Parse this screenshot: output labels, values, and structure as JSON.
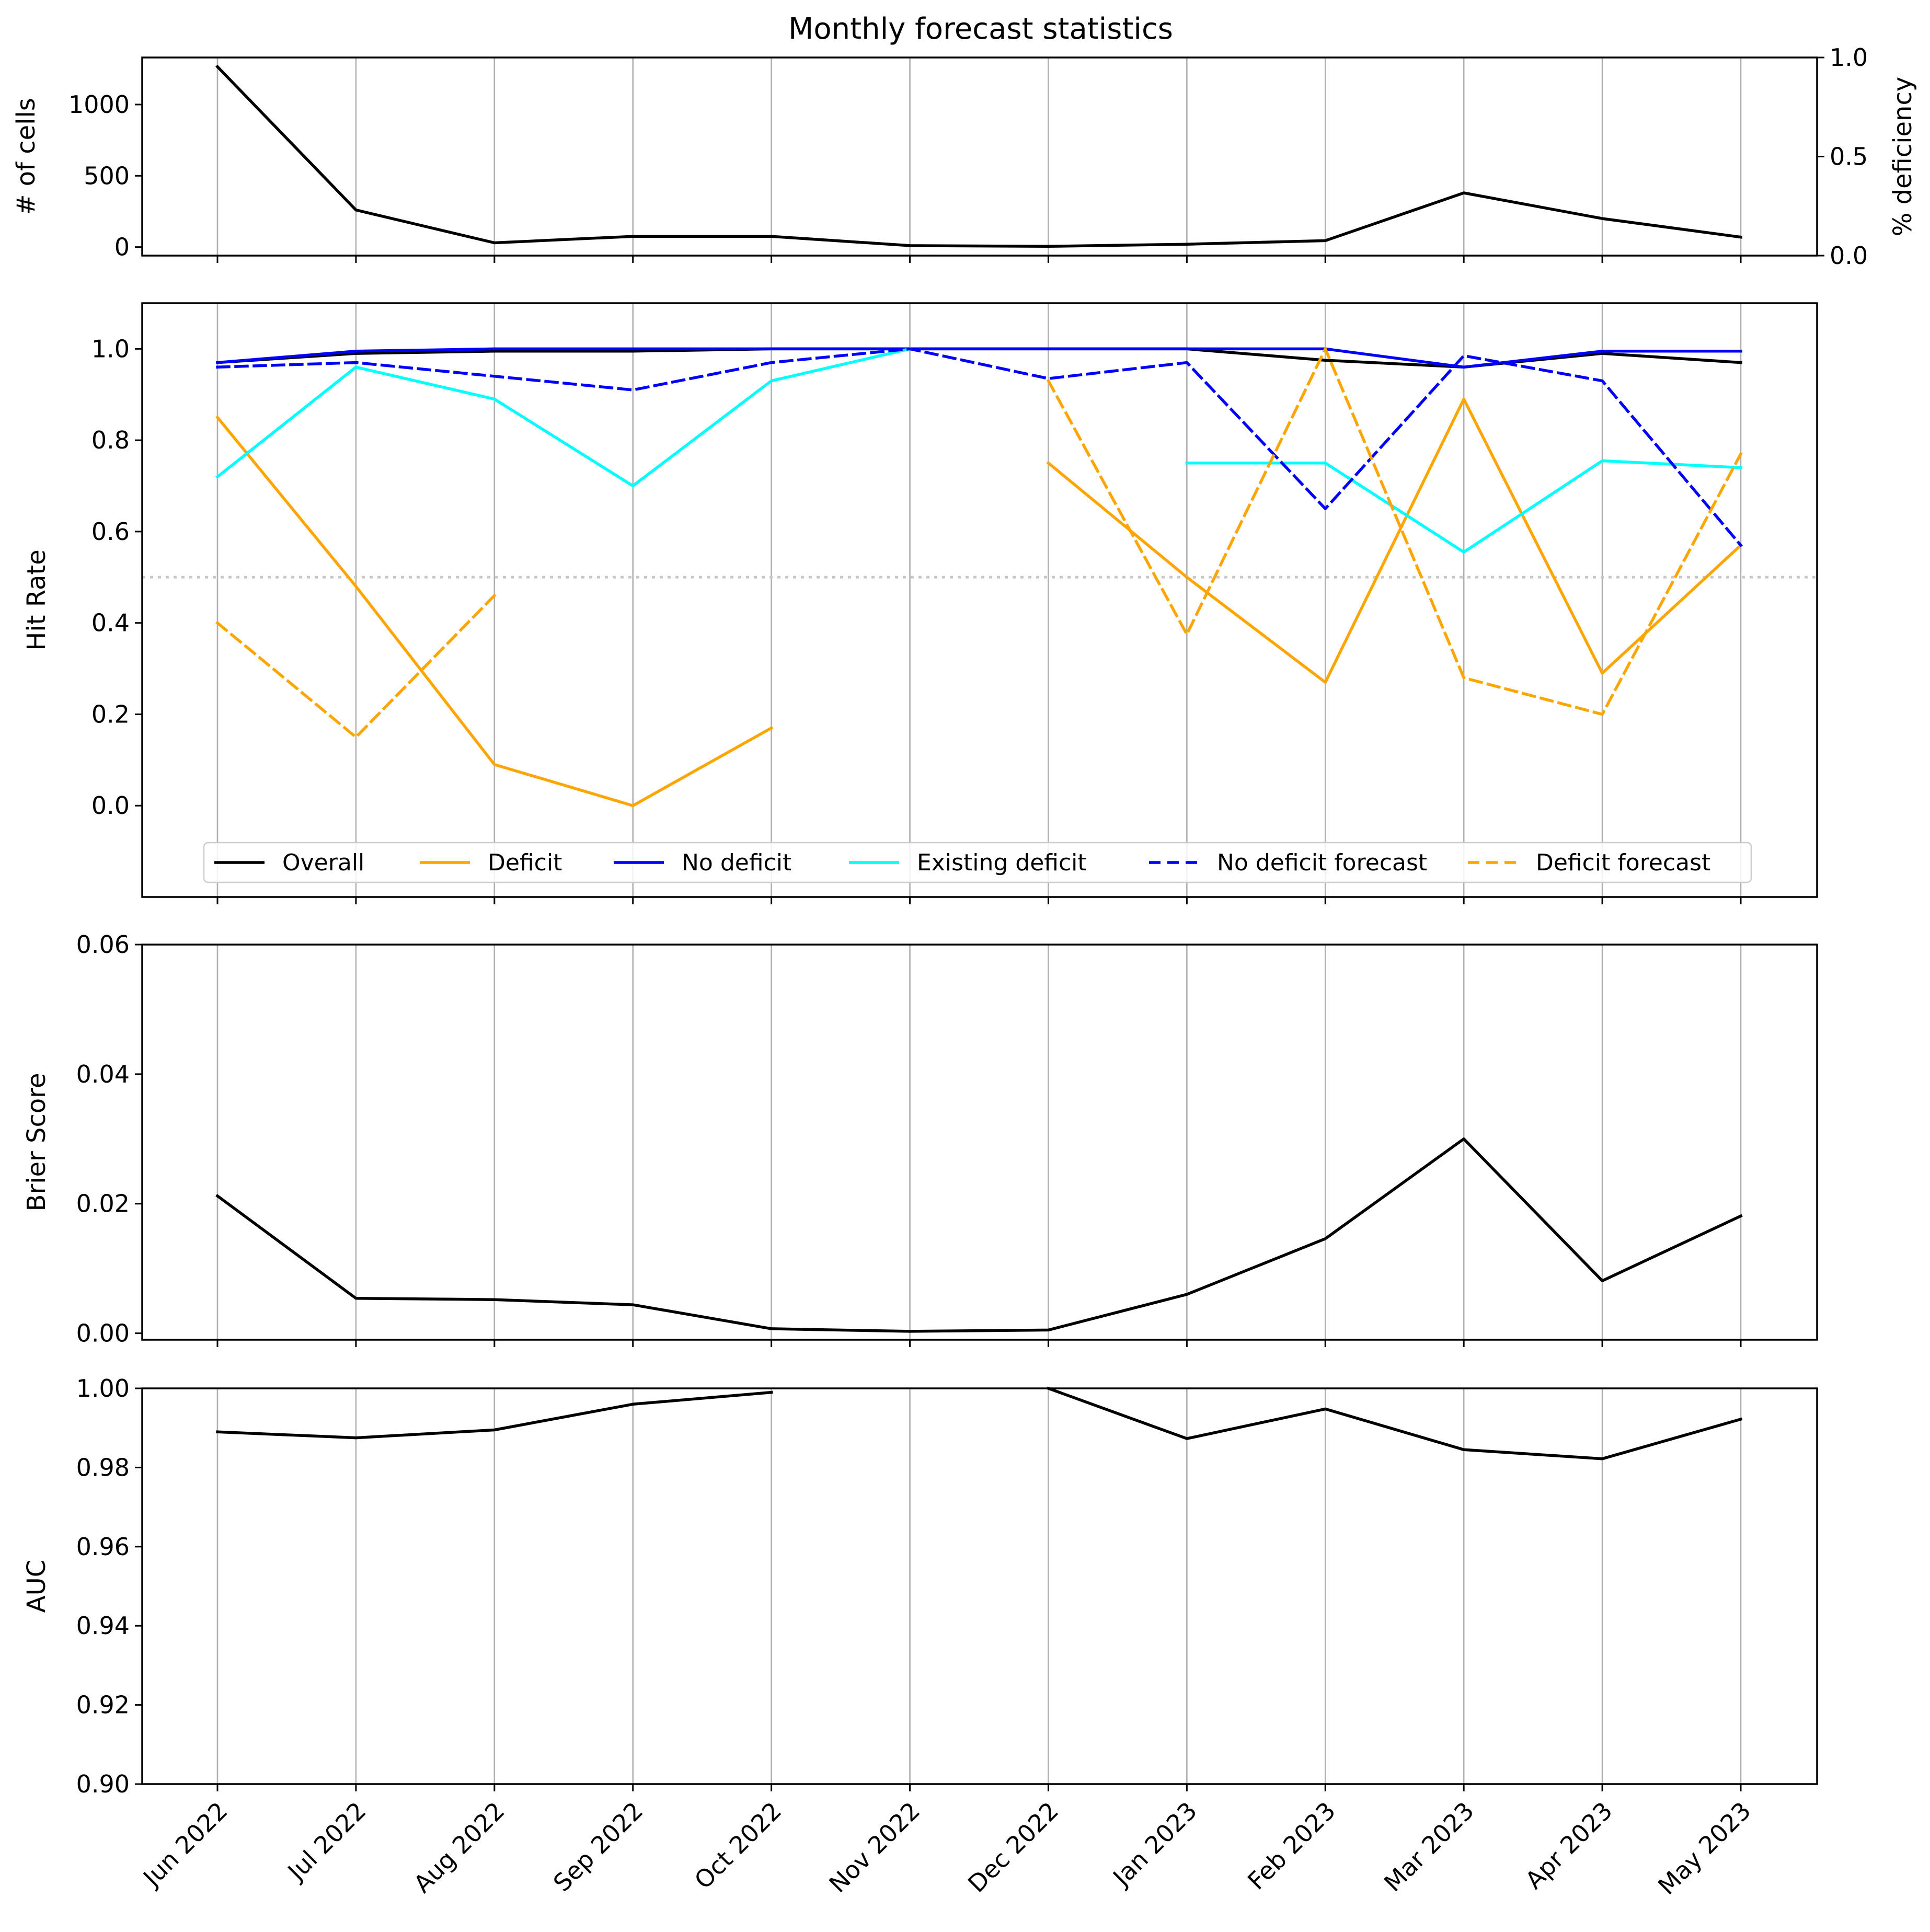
{
  "chart_data": {
    "title": "Monthly forecast statistics",
    "type": "line",
    "x_categories": [
      "Jun 2022",
      "Jul 2022",
      "Aug 2022",
      "Sep 2022",
      "Oct 2022",
      "Nov 2022",
      "Dec 2022",
      "Jan 2023",
      "Feb 2023",
      "Mar 2023",
      "Apr 2023",
      "May 2023"
    ],
    "x_tick_rotation_deg": 45,
    "grid": "vertical",
    "panels": [
      {
        "id": "cells",
        "ylabel": "# of cells",
        "ylim": [
          -60,
          1330
        ],
        "yticks": [
          0,
          500,
          1000
        ],
        "ytick_labels": [
          "0",
          "500",
          "1000"
        ],
        "secondary_axis": {
          "ylabel": "% deficiency",
          "ylim": [
            0,
            1
          ],
          "yticks": [
            0,
            0.5,
            1
          ],
          "ytick_labels": [
            "0.0",
            "0.5",
            "1.0"
          ]
        },
        "series": [
          {
            "name": "# of cells",
            "color": "#000000",
            "dash": "solid",
            "values": [
              1265,
              260,
              30,
              75,
              75,
              10,
              5,
              20,
              45,
              380,
              200,
              70
            ]
          }
        ]
      },
      {
        "id": "hitrate",
        "ylabel": "Hit Rate",
        "ylim": [
          -0.2,
          1.1
        ],
        "yticks": [
          0,
          0.2,
          0.4,
          0.6,
          0.8,
          1.0
        ],
        "ytick_labels": [
          "0.0",
          "0.2",
          "0.4",
          "0.6",
          "0.8",
          "1.0"
        ],
        "reference_line": {
          "y": 0.5,
          "style": "dotted",
          "color": "#c8c8c8"
        },
        "legend": {
          "placement": "bottom-center",
          "columns": 6
        },
        "series": [
          {
            "name": "Overall",
            "color": "#000000",
            "dash": "solid",
            "values": [
              0.97,
              0.99,
              0.995,
              0.995,
              1.0,
              1.0,
              1.0,
              1.0,
              0.975,
              0.96,
              0.99,
              0.97
            ]
          },
          {
            "name": "Deficit",
            "color": "#ffa500",
            "dash": "solid",
            "values": [
              0.85,
              0.48,
              0.09,
              0.0,
              0.17,
              null,
              0.75,
              0.5,
              0.27,
              0.89,
              0.29,
              0.57
            ]
          },
          {
            "name": "No deficit",
            "color": "#0000ff",
            "dash": "solid",
            "values": [
              0.97,
              0.995,
              1.0,
              1.0,
              1.0,
              1.0,
              1.0,
              1.0,
              1.0,
              0.96,
              0.995,
              0.995
            ]
          },
          {
            "name": "Existing deficit",
            "color": "#00ffff",
            "dash": "solid",
            "values": [
              0.72,
              0.96,
              0.89,
              0.7,
              0.93,
              1.0,
              null,
              0.75,
              0.75,
              0.555,
              0.755,
              0.74
            ]
          },
          {
            "name": "No deficit forecast",
            "color": "#0000ff",
            "dash": "dashed",
            "values": [
              0.96,
              0.97,
              0.94,
              0.91,
              0.97,
              1.0,
              0.935,
              0.97,
              0.65,
              0.985,
              0.93,
              0.57
            ]
          },
          {
            "name": "Deficit forecast",
            "color": "#ffa500",
            "dash": "dashed",
            "values": [
              0.4,
              0.15,
              0.46,
              null,
              null,
              null,
              0.93,
              0.375,
              1.0,
              0.28,
              0.2,
              0.77
            ]
          }
        ]
      },
      {
        "id": "brier",
        "ylabel": "Brier Score",
        "ylim": [
          -0.001,
          0.06
        ],
        "yticks": [
          0,
          0.02,
          0.04,
          0.06
        ],
        "ytick_labels": [
          "0.00",
          "0.02",
          "0.04",
          "0.06"
        ],
        "series": [
          {
            "name": "Brier Score",
            "color": "#000000",
            "dash": "solid",
            "values": [
              0.0212,
              0.0054,
              0.0052,
              0.0044,
              0.0007,
              0.0003,
              0.0005,
              0.006,
              0.0146,
              0.03,
              0.0081,
              0.0181
            ]
          }
        ]
      },
      {
        "id": "auc",
        "ylabel": "AUC",
        "ylim": [
          0.9,
          1.0
        ],
        "yticks": [
          0.9,
          0.92,
          0.94,
          0.96,
          0.98,
          1.0
        ],
        "ytick_labels": [
          "0.90",
          "0.92",
          "0.94",
          "0.96",
          "0.98",
          "1.00"
        ],
        "series": [
          {
            "name": "AUC",
            "color": "#000000",
            "dash": "solid",
            "values": [
              0.989,
              0.9875,
              0.9895,
              0.996,
              0.999,
              null,
              1.0,
              0.9873,
              0.9948,
              0.9845,
              0.9822,
              0.9922
            ]
          }
        ]
      }
    ]
  }
}
